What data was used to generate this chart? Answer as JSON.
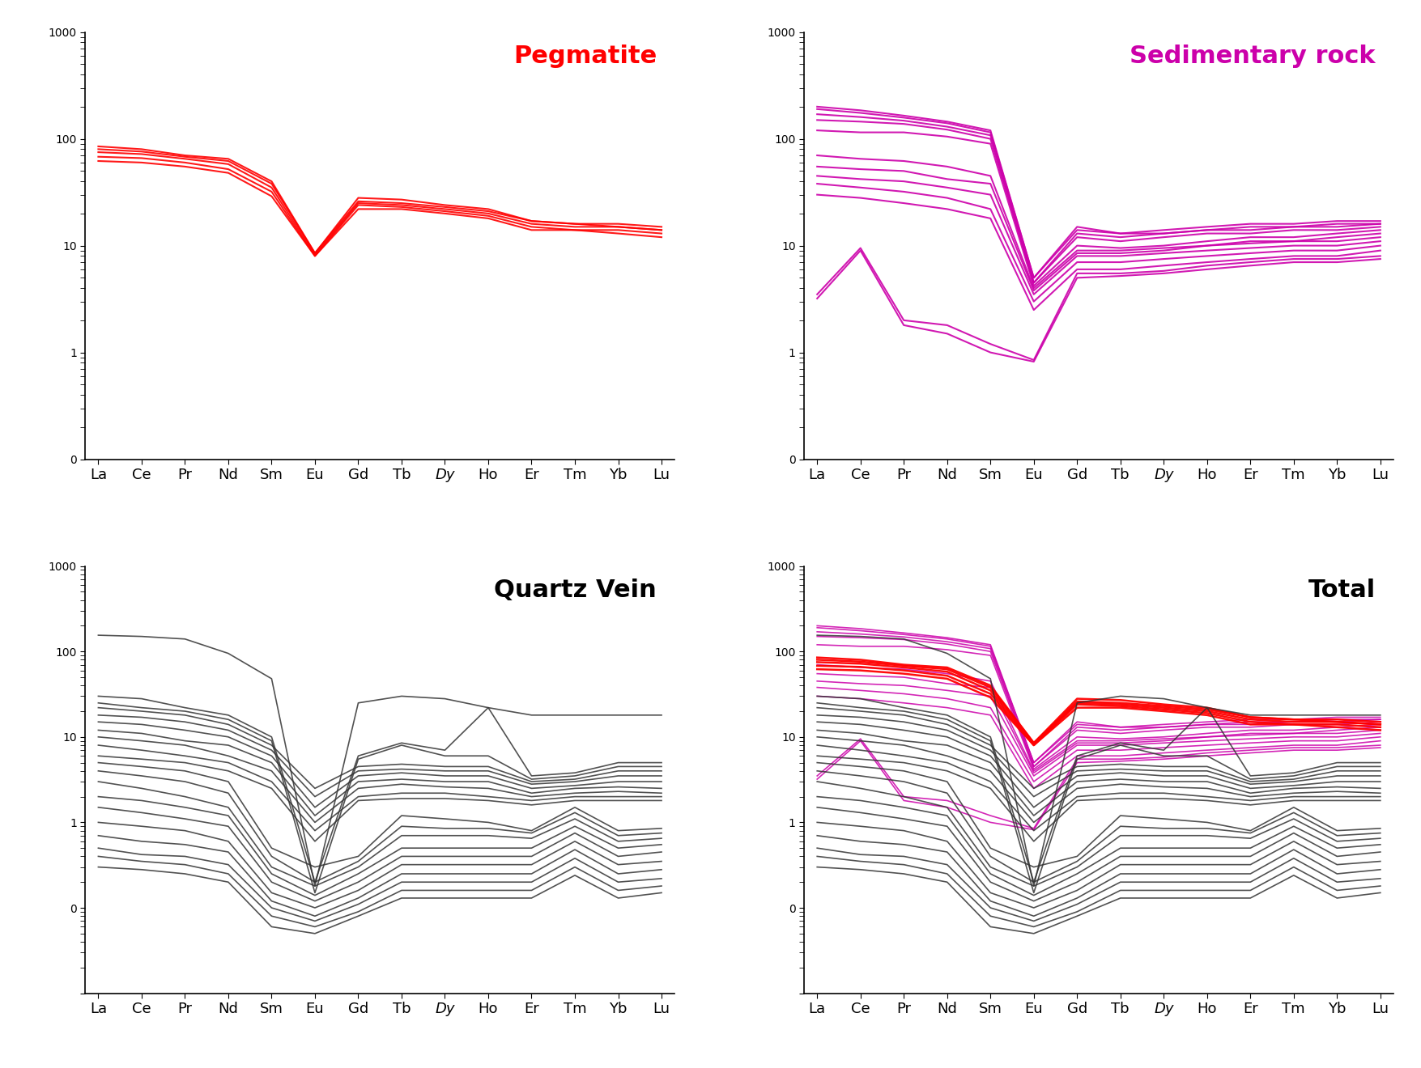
{
  "elements": [
    "La",
    "Ce",
    "Pr",
    "Nd",
    "Sm",
    "Eu",
    "Gd",
    "Tb",
    "Dy",
    "Ho",
    "Er",
    "Tm",
    "Yb",
    "Lu"
  ],
  "pegmatite_color": "#FF0000",
  "sedimentary_color": "#CC00AA",
  "quartz_color": "#333333",
  "pegmatite_lines": [
    [
      85,
      80,
      70,
      65,
      40,
      8.5,
      28,
      27,
      24,
      22,
      17,
      16,
      16,
      15
    ],
    [
      80,
      76,
      68,
      62,
      38,
      8.5,
      26,
      25,
      23,
      21,
      17,
      16,
      15,
      14
    ],
    [
      75,
      72,
      65,
      58,
      35,
      8.2,
      25,
      24,
      22,
      20,
      16,
      15,
      15,
      14
    ],
    [
      68,
      66,
      60,
      52,
      32,
      8.0,
      24,
      23,
      21,
      19,
      15,
      14,
      14,
      13
    ],
    [
      62,
      60,
      55,
      48,
      29,
      8.0,
      22,
      22,
      20,
      18,
      14,
      14,
      13,
      12
    ]
  ],
  "sedimentary_lines": [
    [
      200,
      185,
      165,
      145,
      120,
      5.0,
      15,
      13,
      14,
      15,
      16,
      16,
      17,
      17
    ],
    [
      190,
      175,
      158,
      140,
      115,
      5.0,
      14,
      13,
      13,
      14,
      15,
      15,
      16,
      16
    ],
    [
      170,
      160,
      148,
      130,
      108,
      4.5,
      13,
      12,
      13,
      14,
      14,
      15,
      15,
      16
    ],
    [
      150,
      145,
      138,
      122,
      100,
      4.5,
      12,
      11,
      12,
      13,
      13,
      14,
      14,
      15
    ],
    [
      120,
      115,
      115,
      105,
      90,
      4.2,
      10,
      9.5,
      10,
      11,
      12,
      12,
      13,
      14
    ],
    [
      70,
      65,
      62,
      55,
      45,
      4.0,
      9,
      9,
      9.5,
      10,
      11,
      11,
      12,
      13
    ],
    [
      55,
      52,
      50,
      42,
      38,
      3.8,
      8.5,
      8.5,
      9,
      10,
      10.5,
      11,
      11,
      12
    ],
    [
      45,
      42,
      40,
      35,
      30,
      3.5,
      8,
      8,
      8.5,
      9,
      9.5,
      10,
      10,
      11
    ],
    [
      38,
      35,
      32,
      28,
      22,
      3.0,
      7,
      7,
      7.5,
      8,
      8.5,
      9,
      9,
      10
    ],
    [
      30,
      28,
      25,
      22,
      18,
      2.5,
      6,
      6,
      6.5,
      7,
      7.5,
      8,
      8,
      9
    ],
    [
      3.5,
      9.5,
      2.0,
      1.8,
      1.2,
      0.85,
      5.5,
      5.5,
      5.8,
      6.5,
      7,
      7.5,
      7.5,
      8
    ],
    [
      3.2,
      9.0,
      1.8,
      1.5,
      1.0,
      0.82,
      5.0,
      5.2,
      5.5,
      6,
      6.5,
      7,
      7,
      7.5
    ]
  ],
  "quartz_lines": [
    [
      155,
      150,
      140,
      95,
      48,
      0.18,
      25,
      30,
      28,
      22,
      18,
      18,
      18,
      18
    ],
    [
      30,
      28,
      22,
      18,
      10,
      0.2,
      6,
      8.5,
      7,
      22,
      3.5,
      3.8,
      5,
      5
    ],
    [
      25,
      22,
      20,
      16,
      9,
      0.15,
      5.5,
      8,
      6,
      6,
      3.2,
      3.5,
      4.5,
      4.5
    ],
    [
      22,
      20,
      18,
      14,
      8,
      2.5,
      4.5,
      4.8,
      4.5,
      4.5,
      3.0,
      3.2,
      4,
      4
    ],
    [
      18,
      17,
      15,
      12,
      7,
      2.0,
      4.0,
      4.2,
      4.0,
      4.0,
      2.8,
      3.0,
      3.5,
      3.5
    ],
    [
      15,
      14,
      12,
      10,
      6,
      1.5,
      3.5,
      3.8,
      3.5,
      3.5,
      2.5,
      2.7,
      3.0,
      3.0
    ],
    [
      12,
      11,
      9,
      8,
      5,
      1.2,
      3.0,
      3.2,
      3.0,
      3.0,
      2.2,
      2.5,
      2.6,
      2.5
    ],
    [
      10,
      9,
      8,
      6,
      4,
      1.0,
      2.5,
      2.8,
      2.6,
      2.5,
      2.0,
      2.2,
      2.3,
      2.2
    ],
    [
      8,
      7,
      6,
      5,
      3,
      0.8,
      2.0,
      2.2,
      2.2,
      2.0,
      1.8,
      2.0,
      2.0,
      2.0
    ],
    [
      6,
      5.5,
      5,
      4,
      2.5,
      0.6,
      1.8,
      1.9,
      1.9,
      1.8,
      1.6,
      1.8,
      1.8,
      1.8
    ],
    [
      5,
      4.5,
      4,
      3,
      0.5,
      0.3,
      0.4,
      1.2,
      1.1,
      1.0,
      0.8,
      1.5,
      0.8,
      0.85
    ],
    [
      4,
      3.5,
      3,
      2.2,
      0.4,
      0.2,
      0.35,
      0.9,
      0.85,
      0.85,
      0.75,
      1.3,
      0.7,
      0.75
    ],
    [
      3,
      2.5,
      2,
      1.5,
      0.3,
      0.18,
      0.3,
      0.7,
      0.7,
      0.7,
      0.65,
      1.1,
      0.6,
      0.65
    ],
    [
      2.0,
      1.8,
      1.5,
      1.2,
      0.25,
      0.14,
      0.25,
      0.5,
      0.5,
      0.5,
      0.5,
      0.9,
      0.5,
      0.55
    ],
    [
      1.5,
      1.3,
      1.1,
      0.9,
      0.2,
      0.12,
      0.2,
      0.4,
      0.4,
      0.4,
      0.4,
      0.75,
      0.4,
      0.45
    ],
    [
      1.0,
      0.9,
      0.8,
      0.6,
      0.15,
      0.1,
      0.16,
      0.32,
      0.32,
      0.32,
      0.32,
      0.6,
      0.32,
      0.35
    ],
    [
      0.7,
      0.6,
      0.55,
      0.45,
      0.12,
      0.08,
      0.13,
      0.25,
      0.25,
      0.25,
      0.25,
      0.48,
      0.25,
      0.28
    ],
    [
      0.5,
      0.42,
      0.4,
      0.32,
      0.1,
      0.07,
      0.11,
      0.2,
      0.2,
      0.2,
      0.2,
      0.38,
      0.2,
      0.22
    ],
    [
      0.4,
      0.35,
      0.32,
      0.25,
      0.08,
      0.06,
      0.09,
      0.16,
      0.16,
      0.16,
      0.16,
      0.3,
      0.16,
      0.18
    ],
    [
      0.3,
      0.28,
      0.25,
      0.2,
      0.06,
      0.05,
      0.08,
      0.13,
      0.13,
      0.13,
      0.13,
      0.24,
      0.13,
      0.15
    ]
  ],
  "ylim_peg": [
    0.1,
    1000
  ],
  "ylim_sed": [
    0.1,
    1000
  ],
  "ylim_qtz": [
    0.01,
    1000
  ],
  "ylim_tot": [
    0.01,
    1000
  ],
  "title_pegmatite": "Pegmatite",
  "title_sedimentary": "Sedimentary rock",
  "title_quartz": "Quartz Vein",
  "title_total": "Total"
}
